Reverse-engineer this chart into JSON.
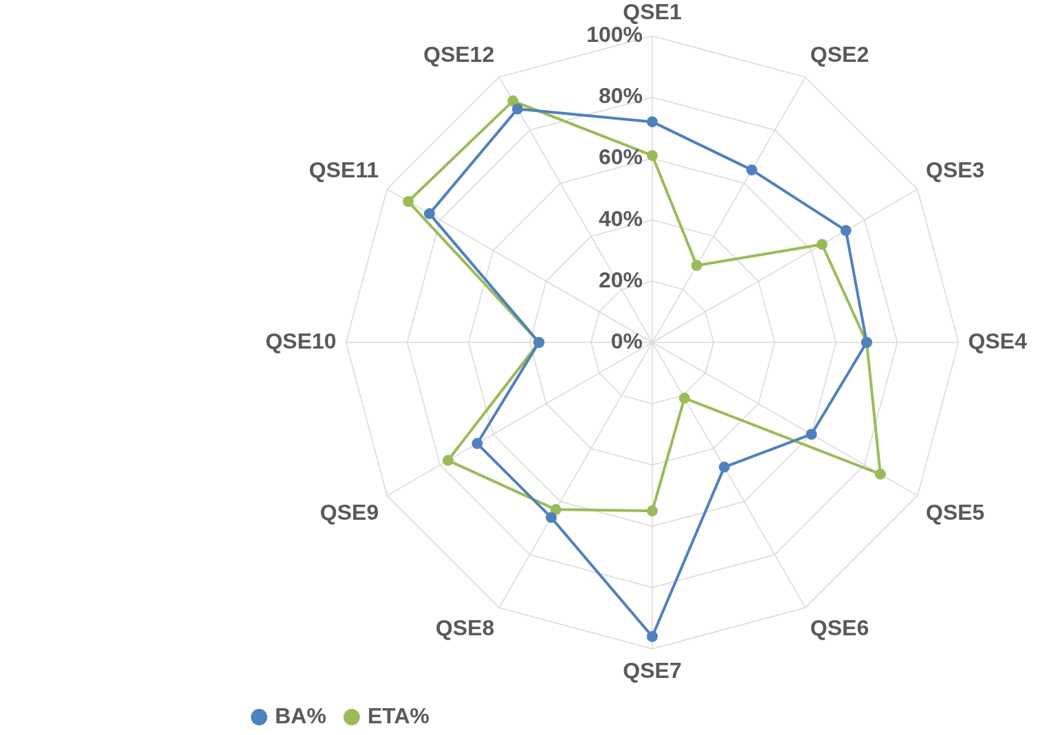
{
  "chart_data": {
    "type": "radar",
    "categories": [
      "QSE1",
      "QSE2",
      "QSE3",
      "QSE4",
      "QSE5",
      "QSE6",
      "QSE7",
      "QSE8",
      "QSE9",
      "QSE10",
      "QSE11",
      "QSE12"
    ],
    "series": [
      {
        "name": "BA%",
        "color": "#4f81bd",
        "values": [
          72,
          65,
          73,
          70,
          60,
          47,
          96,
          66,
          66,
          37,
          84,
          88
        ]
      },
      {
        "name": "ETA%",
        "color": "#9bbb59",
        "values": [
          61,
          29,
          64,
          70,
          86,
          21,
          55,
          63,
          77,
          37,
          92,
          91
        ]
      }
    ],
    "ylim": [
      0,
      100
    ],
    "yticks": [
      {
        "value": 0,
        "label": "0%"
      },
      {
        "value": 20,
        "label": "20%"
      },
      {
        "value": 40,
        "label": "40%"
      },
      {
        "value": 60,
        "label": "60%"
      },
      {
        "value": 80,
        "label": "80%"
      },
      {
        "value": 100,
        "label": "100%"
      }
    ],
    "grid": true,
    "legend": "bottom left",
    "marker": "circle"
  }
}
